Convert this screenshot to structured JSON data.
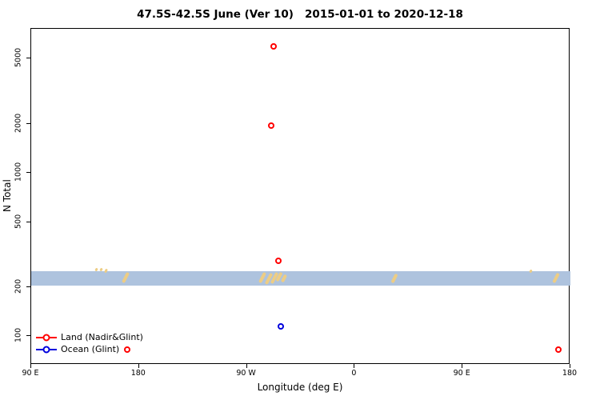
{
  "title": "47.5S-42.5S June (Ver 10)   2015-01-01 to 2020-12-18",
  "x_axis_label": "Longitude (deg E)",
  "y_axis_label": "N Total",
  "legend": {
    "items": [
      {
        "label": "Land (Nadir&Glint)",
        "color": "#ff0000"
      },
      {
        "label": "Ocean (Glint)",
        "color": "#0000dd"
      }
    ]
  },
  "chart_data": {
    "type": "scatter",
    "title": "47.5S-42.5S June (Ver 10)   2015-01-01 to 2020-12-18",
    "xlabel": "Longitude (deg E)",
    "ylabel": "N Total",
    "y_scale": "log",
    "xlim": [
      90,
      540
    ],
    "ylim": [
      67,
      7600
    ],
    "grid": false,
    "legend_position": "bottom-left",
    "x_ticks": [
      {
        "value": 90,
        "label": "90 E"
      },
      {
        "value": 180,
        "label": "180"
      },
      {
        "value": 270,
        "label": "90 W"
      },
      {
        "value": 360,
        "label": "0"
      },
      {
        "value": 450,
        "label": "90 E"
      },
      {
        "value": 540,
        "label": "180"
      }
    ],
    "y_ticks": [
      {
        "value": 100,
        "label": "100"
      },
      {
        "value": 200,
        "label": "200"
      },
      {
        "value": 500,
        "label": "500"
      },
      {
        "value": 1000,
        "label": "1000"
      },
      {
        "value": 2000,
        "label": "2000"
      },
      {
        "value": 5000,
        "label": "5000"
      }
    ],
    "series": [
      {
        "name": "Land (Nadir&Glint)",
        "marker": "open-circle",
        "color": "#ff0000",
        "points": [
          {
            "x": 292,
            "y": 5900
          },
          {
            "x": 290,
            "y": 1950
          },
          {
            "x": 296,
            "y": 290
          },
          {
            "x": 170,
            "y": 83
          },
          {
            "x": 530,
            "y": 83
          }
        ]
      },
      {
        "name": "Ocean (Glint)",
        "marker": "open-circle",
        "color": "#0000dd",
        "points": [
          {
            "x": 298,
            "y": 115
          }
        ]
      }
    ],
    "dense_band": {
      "description": "dense horizontal band of overlapping points spanning all longitudes",
      "color": "#aec3de",
      "x_range": [
        90,
        540
      ],
      "y_range": [
        205,
        250
      ]
    },
    "band_streaks": {
      "color": "#edcd84",
      "items": [
        {
          "x": 145,
          "y": 256,
          "len": 4
        },
        {
          "x": 149,
          "y": 257,
          "len": 4
        },
        {
          "x": 153,
          "y": 253,
          "len": 5
        },
        {
          "x": 169,
          "y": 228,
          "len": 14
        },
        {
          "x": 283,
          "y": 230,
          "len": 14
        },
        {
          "x": 288,
          "y": 226,
          "len": 15
        },
        {
          "x": 293,
          "y": 228,
          "len": 15
        },
        {
          "x": 297,
          "y": 232,
          "len": 12
        },
        {
          "x": 301,
          "y": 226,
          "len": 10
        },
        {
          "x": 393,
          "y": 227,
          "len": 12
        },
        {
          "x": 507,
          "y": 250,
          "len": 4
        },
        {
          "x": 528,
          "y": 228,
          "len": 13
        }
      ]
    }
  }
}
